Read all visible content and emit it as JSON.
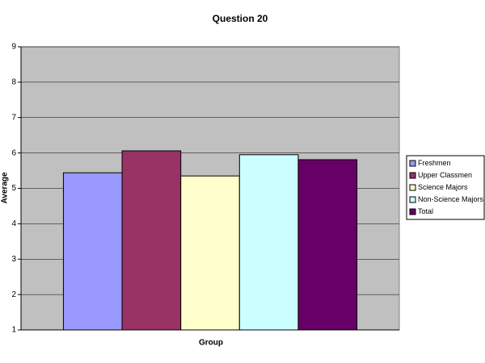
{
  "chart_data": {
    "type": "bar",
    "title": "Question 20",
    "x_label": "Group",
    "y_label": "Average",
    "categories": [
      null
    ],
    "series": [
      {
        "name": "Freshmen",
        "color": "#9999ff",
        "values": [
          5.44
        ]
      },
      {
        "name": "Upper Classmen",
        "color": "#993366",
        "values": [
          6.06
        ]
      },
      {
        "name": "Science Majors",
        "color": "#ffffcc",
        "values": [
          5.35
        ]
      },
      {
        "name": "Non-Science Majors",
        "color": "#ccffff",
        "values": [
          5.95
        ]
      },
      {
        "name": "Total",
        "color": "#660066",
        "values": [
          5.81
        ]
      }
    ],
    "ylim": [
      1,
      9
    ],
    "yticks": [
      1,
      2,
      3,
      4,
      5,
      6,
      7,
      8,
      9
    ],
    "grid": true,
    "legend": "right"
  }
}
